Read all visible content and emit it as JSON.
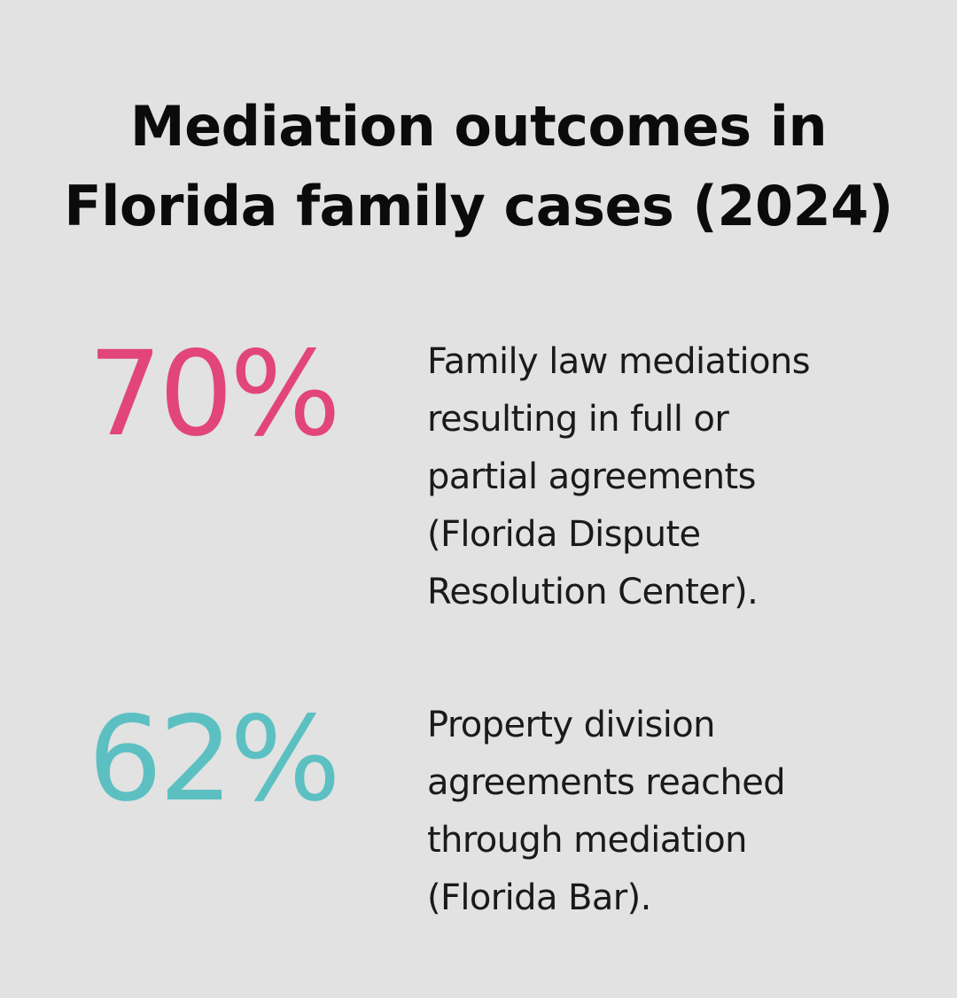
{
  "title": {
    "line1": "Mediation outcomes in",
    "line2": "Florida family cases (2024)"
  },
  "stats": [
    {
      "value": "70%",
      "color": "#e2457a",
      "description_lines": [
        "Family law mediations",
        "resulting in full or",
        "partial agreements",
        "(Florida Dispute",
        "Resolution Center)."
      ]
    },
    {
      "value": "62%",
      "color": "#5cc0c3",
      "description_lines": [
        "Property division",
        "agreements reached",
        "through mediation",
        "(Florida Bar)."
      ]
    }
  ],
  "background_color": "#e1e2e1"
}
